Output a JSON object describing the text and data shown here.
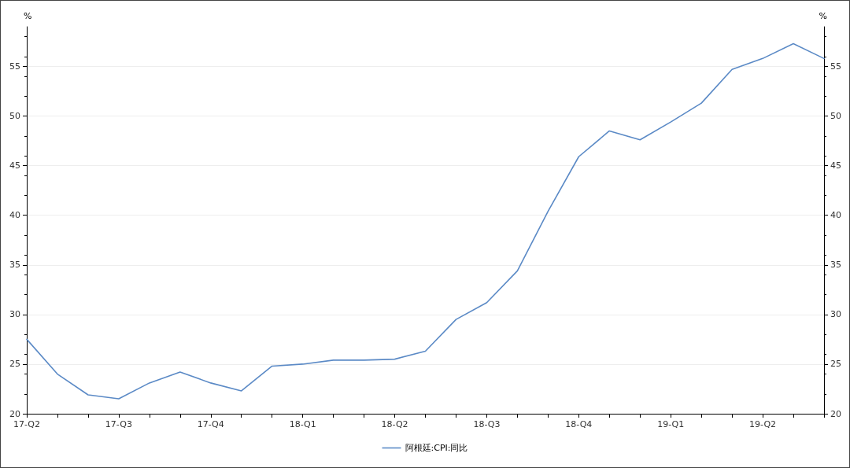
{
  "chart_data": {
    "type": "line",
    "categories": [
      "17-Q2",
      null,
      null,
      "17-Q3",
      null,
      null,
      "17-Q4",
      null,
      null,
      "18-Q1",
      null,
      null,
      "18-Q2",
      null,
      null,
      "18-Q3",
      null,
      null,
      "18-Q4",
      null,
      null,
      "19-Q1",
      null,
      null,
      "19-Q2",
      null,
      null
    ],
    "series": [
      {
        "name": "阿根廷:CPI:同比",
        "color": "#5b8ac6",
        "values": [
          27.5,
          24.0,
          21.9,
          21.5,
          23.1,
          24.2,
          23.1,
          22.3,
          24.8,
          25.0,
          25.4,
          25.4,
          25.5,
          26.3,
          29.5,
          31.2,
          34.4,
          40.4,
          45.9,
          48.5,
          47.6,
          49.4,
          51.3,
          54.7,
          55.8,
          57.3,
          55.8
        ]
      }
    ],
    "ylabel": "%",
    "y2label": "%",
    "ylim": [
      20,
      59
    ],
    "yticks": [
      20,
      25,
      30,
      35,
      40,
      45,
      50,
      55
    ],
    "y2lim": [
      20,
      59
    ],
    "y2ticks": [
      20,
      25,
      30,
      35,
      40,
      45,
      50,
      55
    ],
    "grid": "y",
    "legend": "bottom",
    "marker": "none",
    "line_style": "solid"
  }
}
